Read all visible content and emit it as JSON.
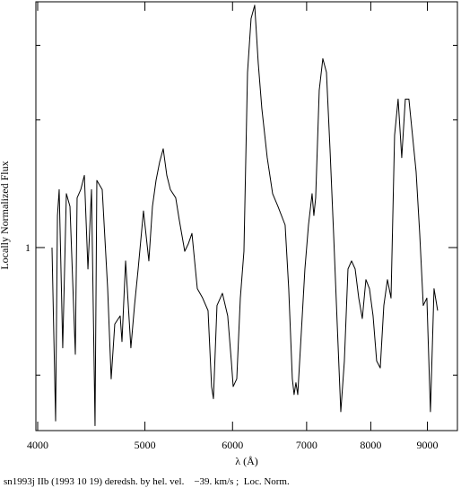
{
  "chart_data": {
    "type": "line",
    "xlabel": "λ (Å)",
    "ylabel": "Locally Normalized Flux",
    "caption": "sn1993j IIb (1993 10 19) deredsh. by hel. vel.    −39. km/s ;  Loc. Norm.",
    "xscale": "log",
    "yscale": "log",
    "xlim": [
      3985,
      9580
    ],
    "ylim": [
      0.37,
      3.8
    ],
    "xticks": [
      4000,
      5000,
      6000,
      7000,
      8000,
      9000
    ],
    "yticks": [
      1
    ],
    "yminor_ticks": [
      0.5,
      2,
      3
    ],
    "color": "#000000",
    "x": [
      4121,
      4152,
      4168,
      4183,
      4214,
      4246,
      4278,
      4326,
      4342,
      4375,
      4408,
      4441,
      4474,
      4507,
      4524,
      4575,
      4627,
      4661,
      4696,
      4749,
      4767,
      4803,
      4856,
      4893,
      4930,
      4985,
      5041,
      5079,
      5117,
      5155,
      5194,
      5233,
      5272,
      5331,
      5371,
      5432,
      5472,
      5514,
      5576,
      5638,
      5702,
      5744,
      5766,
      5809,
      5875,
      5940,
      5985,
      6008,
      6053,
      6098,
      6144,
      6190,
      6236,
      6283,
      6330,
      6377,
      6449,
      6522,
      6595,
      6694,
      6744,
      6795,
      6820,
      6846,
      6872,
      6923,
      6975,
      7027,
      7080,
      7106,
      7133,
      7186,
      7240,
      7295,
      7349,
      7404,
      7460,
      7516,
      7572,
      7629,
      7686,
      7744,
      7802,
      7860,
      7919,
      7978,
      8038,
      8098,
      8159,
      8220,
      8282,
      8344,
      8406,
      8468,
      8532,
      8596,
      8660,
      8725,
      8791,
      8857,
      8923,
      8990,
      9057,
      9125,
      9194
    ],
    "values": [
      1.0,
      0.39,
      1.19,
      1.37,
      0.58,
      1.34,
      1.25,
      0.56,
      1.31,
      1.37,
      1.48,
      0.89,
      1.37,
      0.38,
      1.44,
      1.37,
      0.8,
      0.49,
      0.66,
      0.69,
      0.6,
      0.93,
      0.58,
      0.73,
      0.89,
      1.22,
      0.93,
      1.25,
      1.44,
      1.59,
      1.71,
      1.48,
      1.37,
      1.31,
      1.16,
      0.98,
      1.02,
      1.08,
      0.8,
      0.76,
      0.71,
      0.47,
      0.44,
      0.73,
      0.78,
      0.69,
      0.54,
      0.47,
      0.49,
      0.76,
      0.98,
      2.59,
      3.47,
      3.73,
      2.72,
      2.13,
      1.63,
      1.34,
      1.25,
      1.13,
      0.8,
      0.49,
      0.45,
      0.48,
      0.45,
      0.63,
      0.89,
      1.13,
      1.34,
      1.19,
      1.31,
      2.35,
      2.79,
      2.59,
      1.71,
      1.08,
      0.66,
      0.41,
      0.54,
      0.89,
      0.93,
      0.89,
      0.76,
      0.68,
      0.84,
      0.8,
      0.69,
      0.54,
      0.52,
      0.73,
      0.84,
      0.76,
      1.84,
      2.24,
      1.63,
      2.24,
      2.24,
      1.84,
      1.51,
      1.08,
      0.73,
      0.76,
      0.41,
      0.8,
      0.71
    ]
  }
}
